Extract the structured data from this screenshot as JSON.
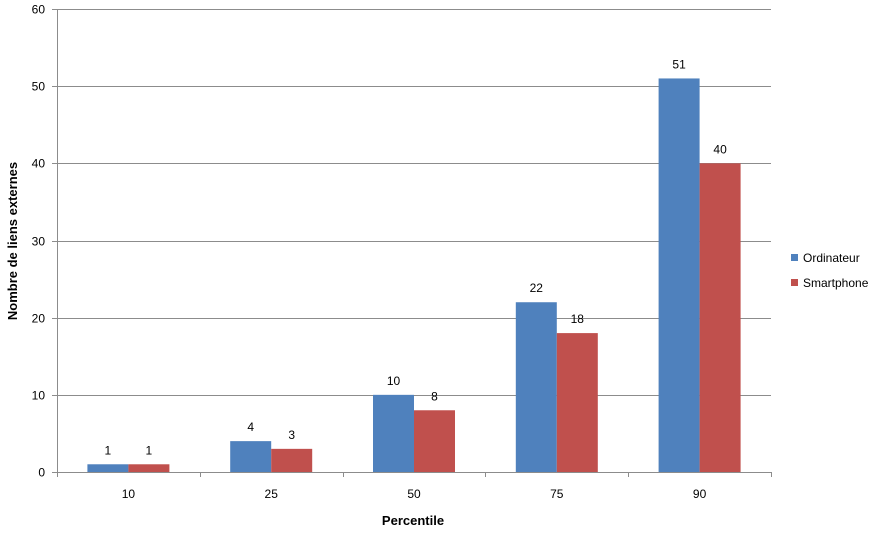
{
  "chart_data": {
    "type": "bar",
    "title": "",
    "xlabel": "Percentile",
    "ylabel": "Nombre de liens externes",
    "categories": [
      "10",
      "25",
      "50",
      "75",
      "90"
    ],
    "series": [
      {
        "name": "Ordinateur",
        "values": [
          1,
          4,
          10,
          22,
          51
        ],
        "color": "#4F81BD"
      },
      {
        "name": "Smartphone",
        "values": [
          1,
          3,
          8,
          18,
          40
        ],
        "color": "#C0504D"
      }
    ],
    "ylim": [
      0,
      60
    ],
    "yticks": [
      0,
      10,
      20,
      30,
      40,
      50,
      60
    ],
    "grid": true,
    "legend_position": "right",
    "data_labels": true
  }
}
